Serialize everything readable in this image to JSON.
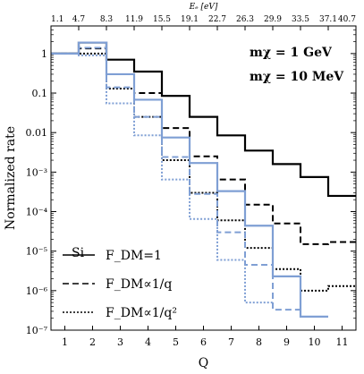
{
  "chart_data": {
    "type": "line",
    "step": true,
    "xlabel": "Q",
    "ylabel": "Normalized rate",
    "x_ticks": [
      "1",
      "2",
      "3",
      "4",
      "5",
      "6",
      "7",
      "8",
      "9",
      "10",
      "11"
    ],
    "xlim": [
      0.5,
      11.5
    ],
    "y_scale": "log",
    "ylim": [
      1e-07,
      5
    ],
    "y_ticks": [
      {
        "value": 1,
        "label": "1"
      },
      {
        "value": 0.1,
        "label": "0.1"
      },
      {
        "value": 0.01,
        "label": "0.01"
      },
      {
        "value": 0.001,
        "label": "10⁻³"
      },
      {
        "value": 0.0001,
        "label": "10⁻⁴"
      },
      {
        "value": 1e-05,
        "label": "10⁻⁵"
      },
      {
        "value": 1e-06,
        "label": "10⁻⁶"
      },
      {
        "value": 1e-07,
        "label": "10⁻⁷"
      }
    ],
    "top_axis_label": "Eₑ [eV]",
    "top_ticks": [
      "1.1",
      "4.7",
      "8.3",
      "11.9",
      "15.5",
      "19.1",
      "22.7",
      "26.3",
      "29.9",
      "33.5",
      "37.1",
      "40.7"
    ],
    "material_label": "Si",
    "mass_labels": [
      {
        "text": "mχ = 1 GeV",
        "color": "#000000"
      },
      {
        "text": "mχ = 10 MeV",
        "color": "#7f9fd4"
      }
    ],
    "legend": [
      {
        "text": "F_DM=1",
        "dash": "solid"
      },
      {
        "text": "F_DM∝1/q",
        "dash": "dashed"
      },
      {
        "text": "F_DM∝1/q²",
        "dash": "dotted"
      }
    ],
    "series": [
      {
        "mass": "1 GeV",
        "form_factor": "1",
        "color": "#000000",
        "dash": "solid",
        "values": [
          1.0,
          1.9,
          0.7,
          0.35,
          0.085,
          0.025,
          0.0085,
          0.0035,
          0.0016,
          0.00075,
          0.00025
        ]
      },
      {
        "mass": "1 GeV",
        "form_factor": "1/q",
        "color": "#000000",
        "dash": "dashed",
        "values": [
          1.0,
          1.35,
          0.3,
          0.1,
          0.013,
          0.0025,
          0.00065,
          0.00015,
          5e-05,
          1.5e-05,
          1.7e-05
        ]
      },
      {
        "mass": "1 GeV",
        "form_factor": "1/q2",
        "color": "#000000",
        "dash": "dotted",
        "values": [
          1.0,
          1.0,
          0.13,
          0.025,
          0.002,
          0.0003,
          6e-05,
          1.2e-05,
          3.5e-06,
          1e-06,
          1.3e-06
        ]
      },
      {
        "mass": "10 MeV",
        "form_factor": "1",
        "color": "#7f9fd4",
        "dash": "solid",
        "values": [
          1.0,
          1.9,
          0.3,
          0.068,
          0.0075,
          0.0017,
          0.00033,
          4.4e-05,
          2.3e-06,
          2.2e-07
        ]
      },
      {
        "mass": "10 MeV",
        "form_factor": "1/q",
        "color": "#7f9fd4",
        "dash": "dashed",
        "values": [
          1.0,
          1.4,
          0.14,
          0.025,
          0.0024,
          0.00028,
          3e-05,
          4.5e-06,
          3.3e-07
        ]
      },
      {
        "mass": "10 MeV",
        "form_factor": "1/q2",
        "color": "#7f9fd4",
        "dash": "dotted",
        "values": [
          1.0,
          0.9,
          0.055,
          0.0085,
          0.00065,
          6.5e-05,
          6e-06,
          5e-07
        ]
      }
    ]
  }
}
